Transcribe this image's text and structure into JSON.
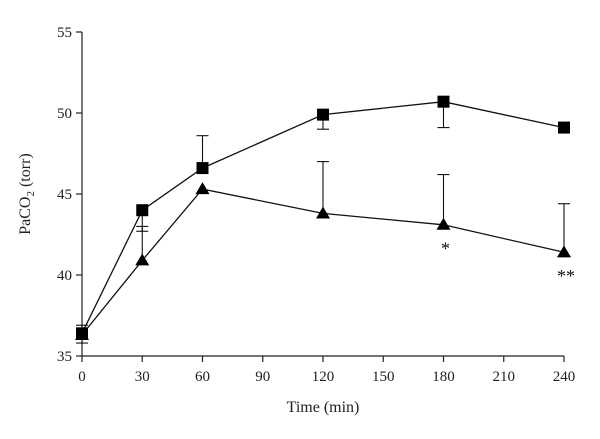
{
  "chart_data": {
    "type": "line",
    "title": "",
    "xlabel": "Time (min)",
    "ylabel_main": "PaCO",
    "ylabel_sub": "2",
    "ylabel_tail": " (torr)",
    "xlim": [
      0,
      240
    ],
    "ylim": [
      35,
      55
    ],
    "xticks": [
      0,
      30,
      60,
      90,
      120,
      150,
      180,
      210,
      240
    ],
    "yticks": [
      35,
      40,
      45,
      50,
      55
    ],
    "grid": false,
    "legend": "none",
    "series": [
      {
        "marker": "square",
        "x": [
          0,
          30,
          60,
          120,
          180,
          240
        ],
        "y": [
          36.4,
          44.0,
          46.6,
          49.9,
          50.7,
          49.1
        ],
        "err_plus": [
          0.5,
          0,
          2.0,
          0,
          0,
          0
        ],
        "err_minus": [
          0,
          1.3,
          0,
          0.9,
          1.6,
          0
        ]
      },
      {
        "marker": "triangle",
        "x": [
          0,
          30,
          60,
          120,
          180,
          240
        ],
        "y": [
          36.3,
          40.9,
          45.3,
          43.8,
          43.1,
          41.4
        ],
        "err_plus": [
          0,
          2.1,
          0,
          3.2,
          3.1,
          3.0
        ],
        "err_minus": [
          0.5,
          0,
          0,
          0,
          0,
          0
        ]
      }
    ],
    "annotations": [
      {
        "text": "*",
        "x": 180,
        "y": 42.0
      },
      {
        "text": "**",
        "x": 240,
        "y": 40.3
      }
    ]
  }
}
